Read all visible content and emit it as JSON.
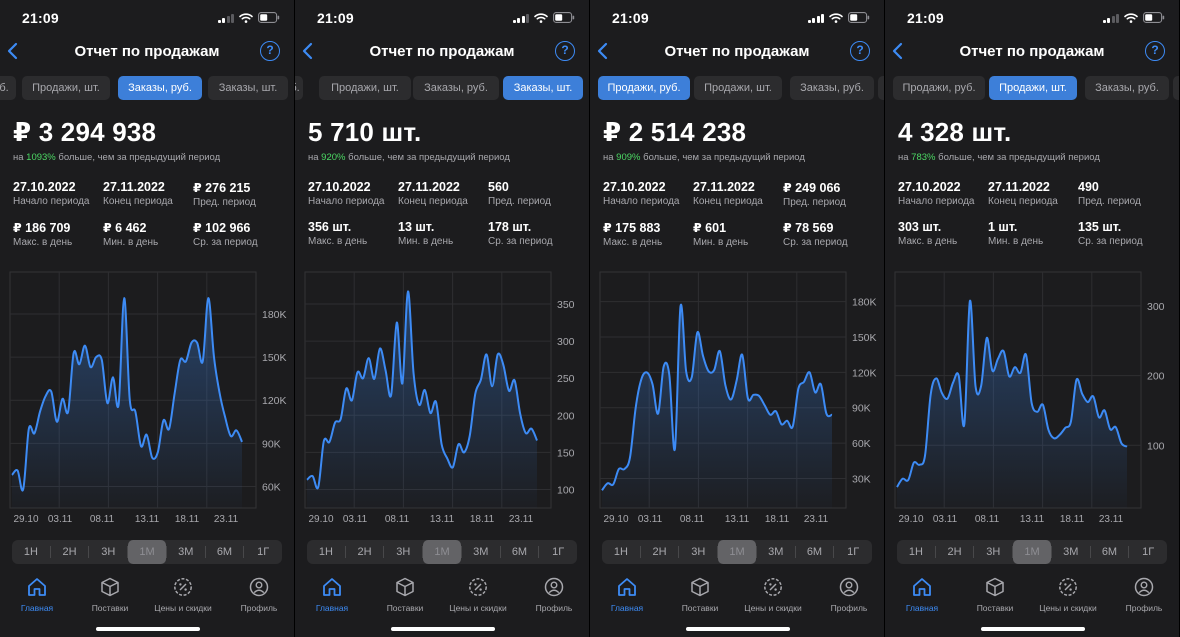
{
  "screens": [
    {
      "time": "21:09",
      "signal_bars": 2,
      "title": "Отчет по продажам",
      "chips": [
        {
          "label": "б.",
          "active": false
        },
        {
          "label": "Продажи, шт.",
          "active": false
        },
        {
          "label": "Заказы, руб.",
          "active": true
        },
        {
          "label": "Заказы, шт.",
          "active": false
        }
      ],
      "total": "₽ 3 294 938",
      "note_prefix": "на ",
      "note_pct": "1093%",
      "note_suffix": " больше, чем за предыдущий период",
      "stats": [
        {
          "value": "27.10.2022",
          "label": "Начало периода"
        },
        {
          "value": "27.11.2022",
          "label": "Конец периода"
        },
        {
          "value": "₽  276 215",
          "label": "Пред. период"
        },
        {
          "value": "₽ 186 709",
          "label": "Макс. в день"
        },
        {
          "value": "₽ 6 462",
          "label": "Мин. в день"
        },
        {
          "value": "₽ 102 966",
          "label": "Ср. за период"
        }
      ],
      "chart_data": {
        "type": "area",
        "y_tick_values": [
          60,
          90,
          120,
          150,
          180
        ],
        "y_tick_labels": [
          "60K",
          "90K",
          "120K",
          "150K",
          "180K"
        ],
        "ylim": [
          45,
          205
        ],
        "x_tick_labels": [
          "29.10",
          "03.11",
          "08.11",
          "13.11",
          "18.11",
          "23.11"
        ],
        "y_label_position": "right",
        "line_color": "#3d8bf5",
        "values": [
          68,
          71,
          58,
          100,
          97,
          112,
          123,
          126,
          105,
          121,
          112,
          153,
          145,
          158,
          143,
          150,
          148,
          118,
          136,
          117,
          191,
          120,
          112,
          88,
          96,
          80,
          84,
          106,
          100,
          125,
          148,
          147,
          160,
          160,
          147,
          191,
          150,
          125,
          108,
          95,
          99,
          91
        ]
      }
    },
    {
      "time": "21:09",
      "signal_bars": 3,
      "title": "Отчет по продажам",
      "chips": [
        {
          "label": "б.",
          "active": false
        },
        {
          "label": "Продажи, шт.",
          "active": false
        },
        {
          "label": "Заказы, руб.",
          "active": false
        },
        {
          "label": "Заказы, шт.",
          "active": true
        }
      ],
      "total": "5 710 шт.",
      "note_prefix": "на ",
      "note_pct": "920%",
      "note_suffix": " больше, чем за предыдущий период",
      "stats": [
        {
          "value": "27.10.2022",
          "label": "Начало периода"
        },
        {
          "value": "27.11.2022",
          "label": "Конец периода"
        },
        {
          "value": "560",
          "label": "Пред. период"
        },
        {
          "value": "356 шт.",
          "label": "Макс. в день"
        },
        {
          "value": "13 шт.",
          "label": "Мин. в день"
        },
        {
          "value": "178 шт.",
          "label": "Ср. за период"
        }
      ],
      "chart_data": {
        "type": "area",
        "y_tick_values": [
          100,
          150,
          200,
          250,
          300,
          350
        ],
        "y_tick_labels": [
          "100",
          "150",
          "200",
          "250",
          "300",
          "350"
        ],
        "ylim": [
          75,
          385
        ],
        "x_tick_labels": [
          "29.10",
          "03.11",
          "08.11",
          "13.11",
          "18.11",
          "23.11"
        ],
        "y_label_position": "right",
        "line_color": "#3d8bf5",
        "values": [
          113,
          118,
          103,
          165,
          164,
          190,
          195,
          236,
          220,
          258,
          250,
          277,
          249,
          290,
          261,
          227,
          325,
          243,
          367,
          256,
          214,
          234,
          203,
          218,
          161,
          142,
          130,
          161,
          150,
          172,
          229,
          248,
          282,
          239,
          282,
          268,
          233,
          247,
          202,
          176,
          182,
          166
        ]
      }
    },
    {
      "time": "21:09",
      "signal_bars": 4,
      "title": "Отчет по продажам",
      "chips": [
        {
          "label": "Продажи, руб.",
          "active": true
        },
        {
          "label": "Продажи, шт.",
          "active": false
        },
        {
          "label": "Заказы, руб.",
          "active": false
        },
        {
          "label": "З",
          "active": false
        }
      ],
      "total": "₽ 2 514 238",
      "note_prefix": "на ",
      "note_pct": "909%",
      "note_suffix": " больше, чем за предыдущий период",
      "stats": [
        {
          "value": "27.10.2022",
          "label": "Начало периода"
        },
        {
          "value": "27.11.2022",
          "label": "Конец периода"
        },
        {
          "value": "₽  249 066",
          "label": "Пред. период"
        },
        {
          "value": "₽ 175 883",
          "label": "Макс. в день"
        },
        {
          "value": "₽ 601",
          "label": "Мин. в день"
        },
        {
          "value": "₽ 78 569",
          "label": "Ср. за период"
        }
      ],
      "chart_data": {
        "type": "area",
        "y_tick_values": [
          30,
          60,
          90,
          120,
          150,
          180
        ],
        "y_tick_labels": [
          "30K",
          "60K",
          "90K",
          "120K",
          "150K",
          "180K"
        ],
        "ylim": [
          5,
          200
        ],
        "x_tick_labels": [
          "29.10",
          "03.11",
          "08.11",
          "13.11",
          "18.11",
          "23.11"
        ],
        "y_label_position": "right",
        "line_color": "#3d8bf5",
        "values": [
          20,
          26,
          25,
          38,
          38,
          48,
          90,
          114,
          120,
          110,
          85,
          125,
          118,
          55,
          176,
          121,
          116,
          154,
          134,
          121,
          122,
          138,
          109,
          97,
          113,
          135,
          98,
          101,
          100,
          92,
          84,
          87,
          76,
          79,
          74,
          106,
          112,
          120,
          103,
          110,
          85,
          84
        ]
      }
    },
    {
      "time": "21:09",
      "signal_bars": 2,
      "title": "Отчет по продажам",
      "chips": [
        {
          "label": "Продажи, руб.",
          "active": false
        },
        {
          "label": "Продажи, шт.",
          "active": true
        },
        {
          "label": "Заказы, руб.",
          "active": false
        },
        {
          "label": "З",
          "active": false
        }
      ],
      "total": "4 328 шт.",
      "note_prefix": "на ",
      "note_pct": "783%",
      "note_suffix": " больше, чем за предыдущий период",
      "stats": [
        {
          "value": "27.10.2022",
          "label": "Начало периода"
        },
        {
          "value": "27.11.2022",
          "label": "Конец периода"
        },
        {
          "value": "490",
          "label": "Пред. период"
        },
        {
          "value": "303 шт.",
          "label": "Макс. в день"
        },
        {
          "value": "1 шт.",
          "label": "Мин. в день"
        },
        {
          "value": "135 шт.",
          "label": "Ср. за период"
        }
      ],
      "chart_data": {
        "type": "area",
        "y_tick_values": [
          100,
          200,
          300
        ],
        "y_tick_labels": [
          "100",
          "200",
          "300"
        ],
        "ylim": [
          10,
          340
        ],
        "x_tick_labels": [
          "29.10",
          "03.11",
          "08.11",
          "13.11",
          "18.11",
          "23.11"
        ],
        "y_label_position": "right",
        "line_color": "#3d8bf5",
        "values": [
          40,
          52,
          50,
          75,
          72,
          85,
          173,
          196,
          175,
          167,
          190,
          200,
          130,
          307,
          185,
          185,
          254,
          207,
          224,
          235,
          199,
          212,
          204,
          230,
          161,
          148,
          158,
          122,
          110,
          115,
          125,
          134,
          194,
          174,
          162,
          170,
          140,
          150,
          123,
          126,
          103,
          98
        ]
      }
    }
  ],
  "ranges": [
    "1Н",
    "2Н",
    "3Н",
    "1М",
    "3М",
    "6М",
    "1Г"
  ],
  "active_range_index": 3,
  "tabs": [
    {
      "label": "Главная",
      "icon": "home-icon"
    },
    {
      "label": "Поставки",
      "icon": "box-icon"
    },
    {
      "label": "Цены и скидки",
      "icon": "discount-icon"
    },
    {
      "label": "Профиль",
      "icon": "profile-icon"
    }
  ],
  "active_tab_index": 0,
  "colors": {
    "accent": "#3d8bf5",
    "chip_active": "#3d7fd9",
    "positive": "#4cd964",
    "background": "#1c1c1e"
  }
}
